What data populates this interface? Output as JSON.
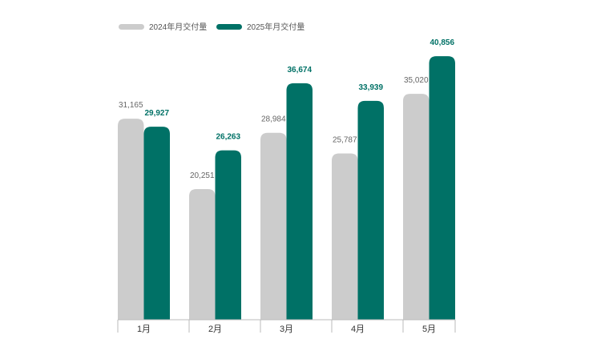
{
  "chart_data": {
    "type": "bar",
    "categories": [
      "1月",
      "2月",
      "3月",
      "4月",
      "5月"
    ],
    "series": [
      {
        "name": "2024年月交付量",
        "values": [
          31165,
          20251,
          28984,
          25787,
          35020
        ],
        "labels": [
          "31,165",
          "20,251",
          "28,984",
          "25,787",
          "35,020"
        ],
        "color": "#cccccc"
      },
      {
        "name": "2025年月交付量",
        "values": [
          29927,
          26263,
          36674,
          33939,
          40856
        ],
        "labels": [
          "29,927",
          "26,263",
          "36,674",
          "33,939",
          "40,856"
        ],
        "color": "#007166"
      }
    ],
    "ylim": [
      0,
      41000
    ],
    "grid": false,
    "legend_position": "top-left"
  }
}
